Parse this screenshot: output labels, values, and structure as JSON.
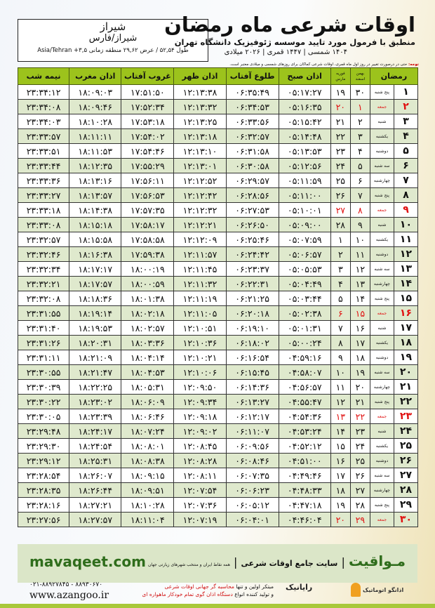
{
  "location": {
    "city": "شیراز",
    "region": "شیراز/فارس",
    "coords": "طول ۵۲,۵۴ / عرض ۲۹,۶۲ منطقه زمانی ۳,۵+ Asia/Tehran"
  },
  "header": {
    "title": "اوقات شرعی ماه رمضان",
    "subtitle": "منطبق با فرمول مورد تایید موسسه ژئوفیزیک دانشگاه تهران",
    "dates": "۱۴۰۴ شمسی | ۱۴۴۷ قمری | ۲۰۲۶ میلادی",
    "note_label": "توجه:",
    "note": "حتی در درصورت تغییر در روز اول ماه قمری، اوقات شرعی کماکان برای روزهای شمسی و میلادی معتبر است."
  },
  "colors": {
    "header_green": "#9cc31c",
    "row_alt": "#dfe9cd",
    "friday_red": "#e01010",
    "brand_green": "#2f6d1c"
  },
  "table": {
    "columns": {
      "ramadan": "رمضان",
      "shamsi_top": "بهمن",
      "shamsi_bottom": "اسفند",
      "miladi_top": "فوریه",
      "miladi_bottom": "مارس",
      "fajr": "اذان صبح",
      "sunrise": "طلوع آفتاب",
      "dhuhr": "اذان ظهر",
      "sunset": "غروب آفتاب",
      "maghrib": "اذان مغرب",
      "midnight": "نیمه شب"
    },
    "rows": [
      [
        "۱",
        "پنج شنبه",
        "۳۰",
        "۱۹",
        "۰۵:۱۷:۲۷",
        "۰۶:۳۵:۴۹",
        "۱۲:۱۳:۳۸",
        "۱۷:۵۱:۵۰",
        "۱۸:۰۹:۰۳",
        "۲۳:۳۴:۱۲"
      ],
      [
        "۲",
        "جمعه",
        "۱",
        "۲۰",
        "۰۵:۱۶:۳۵",
        "۰۶:۳۴:۵۳",
        "۱۲:۱۳:۳۲",
        "۱۷:۵۲:۳۴",
        "۱۸:۰۹:۴۶",
        "۲۳:۳۴:۰۸"
      ],
      [
        "۳",
        "شنبه",
        "۲",
        "۲۱",
        "۰۵:۱۵:۴۲",
        "۰۶:۳۳:۵۶",
        "۱۲:۱۳:۲۵",
        "۱۷:۵۳:۱۸",
        "۱۸:۱۰:۲۸",
        "۲۳:۳۴:۰۳"
      ],
      [
        "۴",
        "یکشنبه",
        "۳",
        "۲۲",
        "۰۵:۱۴:۴۸",
        "۰۶:۳۲:۵۷",
        "۱۲:۱۳:۱۸",
        "۱۷:۵۴:۰۲",
        "۱۸:۱۱:۱۱",
        "۲۳:۳۳:۵۷"
      ],
      [
        "۵",
        "دوشنبه",
        "۴",
        "۲۳",
        "۰۵:۱۳:۵۳",
        "۰۶:۳۱:۵۸",
        "۱۲:۱۳:۱۰",
        "۱۷:۵۴:۴۶",
        "۱۸:۱۱:۵۳",
        "۲۳:۳۳:۵۱"
      ],
      [
        "۶",
        "سه شنبه",
        "۵",
        "۲۴",
        "۰۵:۱۲:۵۶",
        "۰۶:۳۰:۵۸",
        "۱۲:۱۳:۰۱",
        "۱۷:۵۵:۲۹",
        "۱۸:۱۲:۳۵",
        "۲۳:۳۳:۴۴"
      ],
      [
        "۷",
        "چهارشنبه",
        "۶",
        "۲۵",
        "۰۵:۱۱:۵۹",
        "۰۶:۲۹:۵۷",
        "۱۲:۱۲:۵۲",
        "۱۷:۵۶:۱۱",
        "۱۸:۱۳:۱۶",
        "۲۳:۳۳:۳۶"
      ],
      [
        "۸",
        "پنج شنبه",
        "۷",
        "۲۶",
        "۰۵:۱۱:۰۰",
        "۰۶:۲۸:۵۶",
        "۱۲:۱۲:۴۲",
        "۱۷:۵۶:۵۳",
        "۱۸:۱۳:۵۷",
        "۲۳:۳۳:۲۷"
      ],
      [
        "۹",
        "جمعه",
        "۸",
        "۲۷",
        "۰۵:۱۰:۰۱",
        "۰۶:۲۷:۵۳",
        "۱۲:۱۲:۳۲",
        "۱۷:۵۷:۳۵",
        "۱۸:۱۴:۳۸",
        "۲۳:۳۳:۱۸"
      ],
      [
        "۱۰",
        "شنبه",
        "۹",
        "۲۸",
        "۰۵:۰۹:۰۰",
        "۰۶:۲۶:۵۰",
        "۱۲:۱۲:۲۱",
        "۱۷:۵۸:۱۷",
        "۱۸:۱۵:۱۸",
        "۲۳:۳۳:۰۸"
      ],
      [
        "۱۱",
        "یکشنبه",
        "۱۰",
        "۱",
        "۰۵:۰۷:۵۹",
        "۰۶:۲۵:۴۶",
        "۱۲:۱۲:۰۹",
        "۱۷:۵۸:۵۸",
        "۱۸:۱۵:۵۸",
        "۲۳:۳۲:۵۷"
      ],
      [
        "۱۲",
        "دوشنبه",
        "۱۱",
        "۲",
        "۰۵:۰۶:۵۷",
        "۰۶:۲۴:۴۲",
        "۱۲:۱۱:۵۷",
        "۱۷:۵۹:۳۸",
        "۱۸:۱۶:۳۸",
        "۲۳:۳۲:۴۶"
      ],
      [
        "۱۳",
        "سه شنبه",
        "۱۲",
        "۳",
        "۰۵:۰۵:۵۳",
        "۰۶:۲۳:۳۷",
        "۱۲:۱۱:۴۵",
        "۱۸:۰۰:۱۹",
        "۱۸:۱۷:۱۷",
        "۲۳:۳۲:۳۴"
      ],
      [
        "۱۴",
        "چهارشنبه",
        "۱۳",
        "۴",
        "۰۵:۰۴:۴۹",
        "۰۶:۲۲:۳۱",
        "۱۲:۱۱:۳۲",
        "۱۸:۰۰:۵۹",
        "۱۸:۱۷:۵۷",
        "۲۳:۳۲:۲۱"
      ],
      [
        "۱۵",
        "پنج شنبه",
        "۱۴",
        "۵",
        "۰۵:۰۳:۴۴",
        "۰۶:۲۱:۲۵",
        "۱۲:۱۱:۱۹",
        "۱۸:۰۱:۳۸",
        "۱۸:۱۸:۳۶",
        "۲۳:۳۲:۰۸"
      ],
      [
        "۱۶",
        "جمعه",
        "۱۵",
        "۶",
        "۰۵:۰۲:۳۸",
        "۰۶:۲۰:۱۸",
        "۱۲:۱۱:۰۵",
        "۱۸:۰۲:۱۸",
        "۱۸:۱۹:۱۴",
        "۲۳:۳۱:۵۵"
      ],
      [
        "۱۷",
        "شنبه",
        "۱۶",
        "۷",
        "۰۵:۰۱:۳۱",
        "۰۶:۱۹:۱۰",
        "۱۲:۱۰:۵۱",
        "۱۸:۰۲:۵۷",
        "۱۸:۱۹:۵۳",
        "۲۳:۳۱:۴۰"
      ],
      [
        "۱۸",
        "یکشنبه",
        "۱۷",
        "۸",
        "۰۵:۰۰:۲۴",
        "۰۶:۱۸:۰۲",
        "۱۲:۱۰:۳۶",
        "۱۸:۰۳:۳۶",
        "۱۸:۲۰:۳۱",
        "۲۳:۳۱:۲۶"
      ],
      [
        "۱۹",
        "دوشنبه",
        "۱۸",
        "۹",
        "۰۴:۵۹:۱۶",
        "۰۶:۱۶:۵۴",
        "۱۲:۱۰:۲۱",
        "۱۸:۰۴:۱۴",
        "۱۸:۲۱:۰۹",
        "۲۳:۳۱:۱۱"
      ],
      [
        "۲۰",
        "سه شنبه",
        "۱۹",
        "۱۰",
        "۰۴:۵۸:۰۷",
        "۰۶:۱۵:۴۵",
        "۱۲:۱۰:۰۶",
        "۱۸:۰۴:۵۳",
        "۱۸:۲۱:۴۷",
        "۲۳:۳۰:۵۵"
      ],
      [
        "۲۱",
        "چهارشنبه",
        "۲۰",
        "۱۱",
        "۰۴:۵۶:۵۷",
        "۰۶:۱۴:۳۶",
        "۱۲:۰۹:۵۰",
        "۱۸:۰۵:۳۱",
        "۱۸:۲۲:۲۵",
        "۲۳:۳۰:۳۹"
      ],
      [
        "۲۲",
        "پنج شنبه",
        "۲۱",
        "۱۲",
        "۰۴:۵۵:۴۷",
        "۰۶:۱۳:۲۷",
        "۱۲:۰۹:۳۴",
        "۱۸:۰۶:۰۹",
        "۱۸:۲۳:۰۲",
        "۲۳:۳۰:۲۲"
      ],
      [
        "۲۳",
        "جمعه",
        "۲۲",
        "۱۳",
        "۰۴:۵۴:۳۶",
        "۰۶:۱۲:۱۷",
        "۱۲:۰۹:۱۸",
        "۱۸:۰۶:۴۶",
        "۱۸:۲۳:۳۹",
        "۲۳:۳۰:۰۵"
      ],
      [
        "۲۴",
        "شنبه",
        "۲۳",
        "۱۴",
        "۰۴:۵۳:۲۴",
        "۰۶:۱۱:۰۷",
        "۱۲:۰۹:۰۲",
        "۱۸:۰۷:۲۴",
        "۱۸:۲۴:۱۷",
        "۲۳:۲۹:۴۸"
      ],
      [
        "۲۵",
        "یکشنبه",
        "۲۴",
        "۱۵",
        "۰۴:۵۲:۱۲",
        "۰۶:۰۹:۵۶",
        "۱۲:۰۸:۴۵",
        "۱۸:۰۸:۰۱",
        "۱۸:۲۴:۵۴",
        "۲۳:۲۹:۳۰"
      ],
      [
        "۲۶",
        "دوشنبه",
        "۲۵",
        "۱۶",
        "۰۴:۵۱:۰۰",
        "۰۶:۰۸:۴۶",
        "۱۲:۰۸:۲۸",
        "۱۸:۰۸:۳۸",
        "۱۸:۲۵:۳۱",
        "۲۳:۲۹:۱۲"
      ],
      [
        "۲۷",
        "سه شنبه",
        "۲۶",
        "۱۷",
        "۰۴:۴۹:۴۶",
        "۰۶:۰۷:۳۵",
        "۱۲:۰۸:۱۱",
        "۱۸:۰۹:۱۵",
        "۱۸:۲۶:۰۷",
        "۲۳:۲۸:۵۴"
      ],
      [
        "۲۸",
        "چهارشنبه",
        "۲۷",
        "۱۸",
        "۰۴:۴۸:۳۳",
        "۰۶:۰۶:۲۳",
        "۱۲:۰۷:۵۴",
        "۱۸:۰۹:۵۱",
        "۱۸:۲۶:۴۴",
        "۲۳:۲۸:۳۵"
      ],
      [
        "۲۹",
        "پنج شنبه",
        "۲۸",
        "۱۹",
        "۰۴:۴۷:۱۸",
        "۰۶:۰۵:۱۲",
        "۱۲:۰۷:۳۶",
        "۱۸:۱۰:۲۸",
        "۱۸:۲۷:۲۱",
        "۲۳:۲۸:۱۶"
      ],
      [
        "۳۰",
        "جمعه",
        "۲۹",
        "۲۰",
        "۰۴:۴۶:۰۴",
        "۰۶:۰۴:۰۱",
        "۱۲:۰۷:۱۹",
        "۱۸:۱۱:۰۴",
        "۱۸:۲۷:۵۷",
        "۲۳:۲۷:۵۶"
      ]
    ]
  },
  "footer": {
    "brand": "مـواقیت",
    "tagline": "سایت جامع اوقات شرعی",
    "coverage": "همه نقاط ایران و منتخب شهرهای زیارتی جهان",
    "domain": "mavaqeet.com",
    "phones": "۰۲۱-۸۸۹۲۷۸۴۵ - ۸۸۹۳۰۶۷۰",
    "website": "www.azangoo.ir",
    "promo_1a": "مبتکر اولین و تنها ",
    "promo_1b": "محاسبه گر جهانی اوقات شرعی",
    "promo_2a": "و تولید کننده انواع ",
    "promo_2b": "دستگاه اذان گوی تمام خودکار ماهواره ای",
    "logo_rayanik": "رایانیک",
    "logo_azangoo": "اذانگو اتوماتیک"
  }
}
